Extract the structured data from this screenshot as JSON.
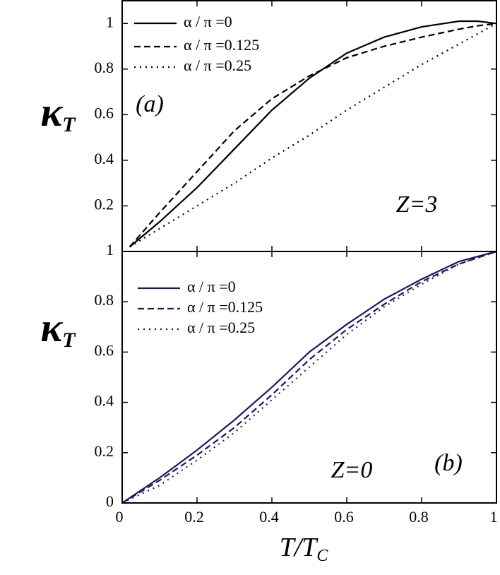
{
  "chart_data": [
    {
      "type": "line",
      "y_label": "κ",
      "y_label_sub": "T",
      "annotations": [
        "(a)",
        "Z=3"
      ],
      "x": [
        0.02,
        0.1,
        0.2,
        0.3,
        0.4,
        0.5,
        0.6,
        0.7,
        0.8,
        0.9,
        0.95,
        1.0
      ],
      "xlim": [
        0,
        1
      ],
      "xticks": [
        0,
        0.2,
        0.4,
        0.6,
        0.8,
        1
      ],
      "show_xtick_labels": false,
      "ylim": [
        0,
        1.1
      ],
      "yticks": [
        0.2,
        0.4,
        0.6,
        0.8,
        1
      ],
      "series": [
        {
          "name": "α / π =0",
          "color": "#000000",
          "line_style": "solid",
          "values": [
            0.02,
            0.13,
            0.28,
            0.45,
            0.62,
            0.76,
            0.87,
            0.94,
            0.985,
            1.01,
            1.01,
            1.0
          ]
        },
        {
          "name": "α / π =0.125",
          "color": "#000000",
          "line_style": "dashed",
          "values": [
            0.02,
            0.17,
            0.35,
            0.53,
            0.67,
            0.77,
            0.85,
            0.9,
            0.94,
            0.975,
            0.99,
            1.0
          ]
        },
        {
          "name": "α / π =0.25",
          "color": "#000000",
          "line_style": "dotted",
          "values": [
            0.02,
            0.1,
            0.2,
            0.3,
            0.41,
            0.51,
            0.62,
            0.72,
            0.82,
            0.91,
            0.955,
            1.0
          ]
        }
      ]
    },
    {
      "type": "line",
      "y_label": "κ",
      "y_label_sub": "T",
      "x_label": "T/T",
      "x_label_sub": "C",
      "annotations": [
        "(b)",
        "Z=0"
      ],
      "x": [
        0.0,
        0.1,
        0.2,
        0.3,
        0.4,
        0.5,
        0.6,
        0.7,
        0.8,
        0.9,
        1.0
      ],
      "xlim": [
        0,
        1
      ],
      "xticks": [
        0,
        0.2,
        0.4,
        0.6,
        0.8,
        1
      ],
      "show_xtick_labels": true,
      "ylim": [
        0,
        1
      ],
      "yticks": [
        0,
        0.2,
        0.4,
        0.6,
        0.8,
        1
      ],
      "series": [
        {
          "name": "α / π =0",
          "color": "#1a1a5e",
          "line_style": "solid",
          "values": [
            0.0,
            0.1,
            0.21,
            0.33,
            0.46,
            0.6,
            0.71,
            0.81,
            0.89,
            0.96,
            1.0
          ]
        },
        {
          "name": "α / π =0.125",
          "color": "#1a1a5e",
          "line_style": "dashed",
          "values": [
            0.0,
            0.09,
            0.19,
            0.3,
            0.43,
            0.57,
            0.69,
            0.79,
            0.88,
            0.95,
            1.0
          ]
        },
        {
          "name": "α / π =0.25",
          "color": "#1a1a5e",
          "line_style": "dotted",
          "values": [
            0.0,
            0.07,
            0.17,
            0.28,
            0.41,
            0.54,
            0.67,
            0.78,
            0.87,
            0.95,
            1.0
          ]
        }
      ]
    }
  ]
}
